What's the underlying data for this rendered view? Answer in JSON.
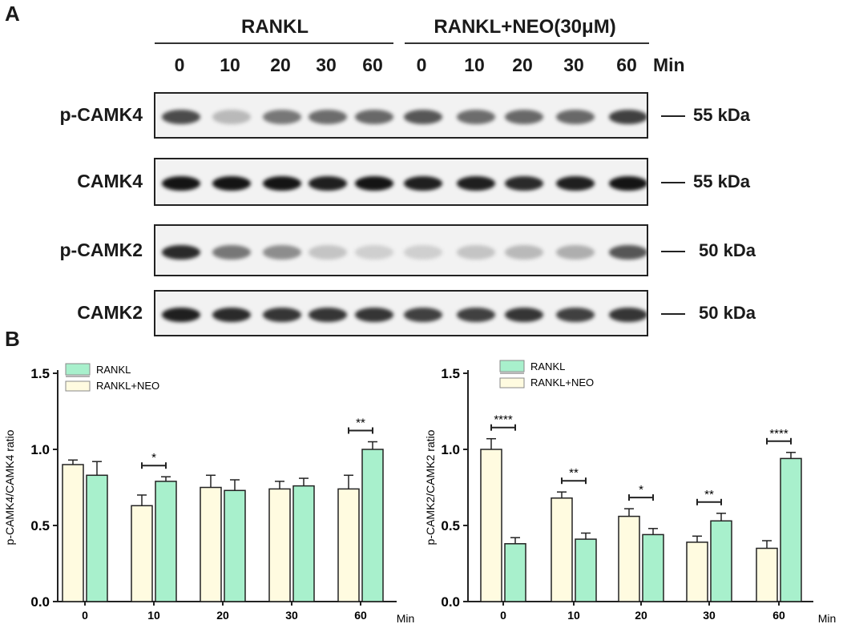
{
  "panelA": {
    "letter": "A",
    "group1": "RANKL",
    "group2": "RANKL+NEO(30μM)",
    "lanes": [
      "0",
      "10",
      "20",
      "30",
      "60",
      "0",
      "10",
      "20",
      "30",
      "60"
    ],
    "time_unit": "Min",
    "blots": [
      {
        "name": "p-CAMK4",
        "size": "55 kDa",
        "intensities": [
          0.75,
          0.25,
          0.55,
          0.6,
          0.62,
          0.7,
          0.6,
          0.62,
          0.62,
          0.8
        ]
      },
      {
        "name": "CAMK4",
        "size": "55 kDa",
        "intensities": [
          1,
          1,
          1,
          0.95,
          1,
          0.95,
          0.95,
          0.9,
          0.95,
          1
        ]
      },
      {
        "name": "p-CAMK2",
        "size": "50 kDa",
        "intensities": [
          0.9,
          0.55,
          0.45,
          0.2,
          0.15,
          0.15,
          0.2,
          0.25,
          0.3,
          0.7
        ]
      },
      {
        "name": "CAMK2",
        "size": "50 kDa",
        "intensities": [
          0.95,
          0.9,
          0.85,
          0.85,
          0.85,
          0.8,
          0.8,
          0.85,
          0.8,
          0.85
        ]
      }
    ]
  },
  "panelB": {
    "letter": "B",
    "colors": {
      "rankl": "#a8f0cc",
      "rankl_neo": "#fffbe0",
      "stroke": "#222222"
    }
  },
  "chart_data": [
    {
      "type": "bar",
      "ylabel": "p-CAMK4/CAMK4 ratio",
      "xlabel": "Min",
      "categories": [
        "0",
        "10",
        "20",
        "30",
        "60"
      ],
      "ylim": [
        0,
        1.5
      ],
      "yticks": [
        "0.0",
        "0.5",
        "1.0",
        "1.5"
      ],
      "legend": [
        "RANKL",
        "RANKL+NEO"
      ],
      "series": [
        {
          "name": "RANKL+NEO",
          "values": [
            0.9,
            0.63,
            0.75,
            0.74,
            0.74
          ],
          "errors": [
            0.03,
            0.07,
            0.08,
            0.05,
            0.09
          ]
        },
        {
          "name": "RANKL",
          "values": [
            0.83,
            0.79,
            0.73,
            0.76,
            1.0
          ],
          "errors": [
            0.09,
            0.03,
            0.07,
            0.05,
            0.05
          ]
        }
      ],
      "significance": [
        "",
        "*",
        "",
        "",
        "**"
      ]
    },
    {
      "type": "bar",
      "ylabel": "p-CAMK2/CAMK2 ratio",
      "xlabel": "Min",
      "categories": [
        "0",
        "10",
        "20",
        "30",
        "60"
      ],
      "ylim": [
        0,
        1.5
      ],
      "yticks": [
        "0.0",
        "0.5",
        "1.0",
        "1.5"
      ],
      "legend": [
        "RANKL",
        "RANKL+NEO"
      ],
      "series": [
        {
          "name": "RANKL+NEO",
          "values": [
            1.0,
            0.68,
            0.56,
            0.39,
            0.35
          ],
          "errors": [
            0.07,
            0.04,
            0.05,
            0.04,
            0.05
          ]
        },
        {
          "name": "RANKL",
          "values": [
            0.38,
            0.41,
            0.44,
            0.53,
            0.94
          ],
          "errors": [
            0.04,
            0.04,
            0.04,
            0.05,
            0.04
          ]
        }
      ],
      "significance": [
        "****",
        "**",
        "*",
        "**",
        "****"
      ]
    }
  ]
}
